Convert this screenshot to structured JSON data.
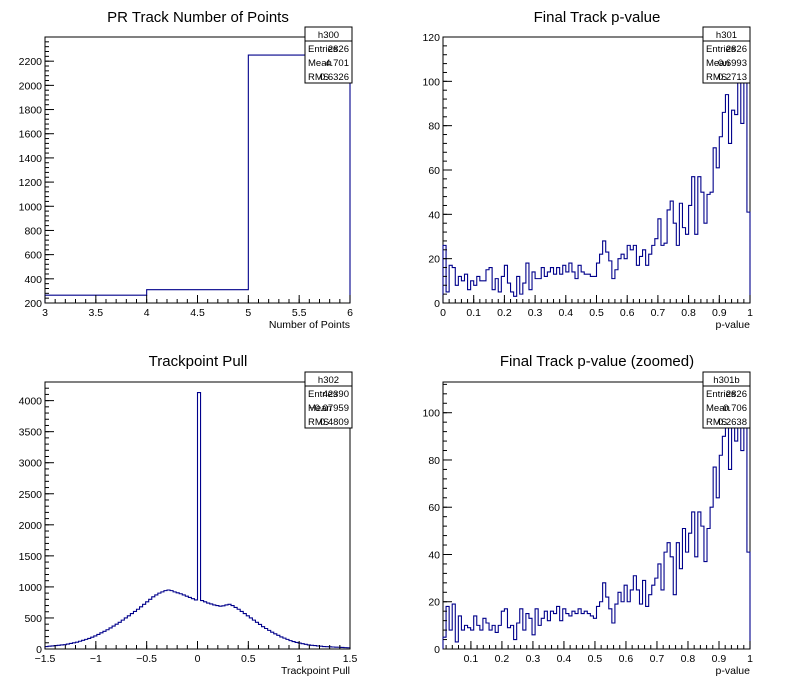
{
  "chart_data": [
    {
      "type": "histogram",
      "title": "PR Track Number of Points",
      "xlabel": "Number of Points",
      "ylabel": "",
      "xlim": [
        3,
        6
      ],
      "ylim": [
        200,
        2400
      ],
      "xticks": [
        "3",
        "3.5",
        "4",
        "4.5",
        "5",
        "5.5",
        "6"
      ],
      "yticks": [
        "200",
        "400",
        "600",
        "800",
        "1000",
        "1200",
        "1400",
        "1600",
        "1800",
        "2000",
        "2200"
      ],
      "bin_edges": [
        3,
        4,
        5,
        6
      ],
      "values": [
        265,
        310,
        2251
      ],
      "stats": {
        "name": "h300",
        "rows": [
          [
            "Entries",
            "2826"
          ],
          [
            "Mean",
            "4.701"
          ],
          [
            "RMS",
            "0.6326"
          ]
        ]
      },
      "line_color": "#00008b"
    },
    {
      "type": "histogram",
      "title": "Final Track p-value",
      "xlabel": "p-value",
      "ylabel": "",
      "xlim": [
        0,
        1
      ],
      "ylim": [
        0,
        120
      ],
      "xticks": [
        "0",
        "0.1",
        "0.2",
        "0.3",
        "0.4",
        "0.5",
        "0.6",
        "0.7",
        "0.8",
        "0.9",
        "1"
      ],
      "yticks": [
        "0",
        "20",
        "40",
        "60",
        "80",
        "100",
        "120"
      ],
      "bin_edges_range": [
        0,
        1
      ],
      "values": [
        26,
        5,
        17,
        16,
        8,
        12,
        10,
        13,
        6,
        10,
        8,
        12,
        10,
        10,
        15,
        16,
        6,
        11,
        5,
        12,
        17,
        9,
        5,
        3,
        12,
        4,
        9,
        18,
        6,
        14,
        11,
        11,
        16,
        12,
        14,
        16,
        13,
        16,
        13,
        17,
        14,
        18,
        14,
        11,
        17,
        14,
        13,
        13,
        12,
        12,
        18,
        22,
        28,
        23,
        19,
        11,
        15,
        20,
        22,
        20,
        26,
        24,
        26,
        17,
        21,
        24,
        17,
        22,
        26,
        29,
        38,
        26,
        27,
        42,
        46,
        36,
        26,
        45,
        34,
        31,
        44,
        57,
        31,
        57,
        50,
        36,
        49,
        50,
        70,
        61,
        75,
        86,
        94,
        72,
        87,
        85,
        102,
        81,
        115,
        41
      ],
      "stats": {
        "name": "h301",
        "rows": [
          [
            "Entries",
            "2826"
          ],
          [
            "Mean",
            "0.6993"
          ],
          [
            "RMS",
            "0.2713"
          ]
        ]
      },
      "line_color": "#00008b"
    },
    {
      "type": "histogram",
      "title": "Trackpoint Pull",
      "xlabel": "Trackpoint Pull",
      "ylabel": "",
      "xlim": [
        -1.5,
        1.5
      ],
      "ylim": [
        0,
        4300
      ],
      "xticks": [
        "−1.5",
        "−1",
        "−0.5",
        "0",
        "0.5",
        "1",
        "1.5"
      ],
      "yticks": [
        "0",
        "500",
        "1000",
        "1500",
        "2000",
        "2500",
        "3000",
        "3500",
        "4000"
      ],
      "bin_edges_range": [
        -1.5,
        1.5
      ],
      "values": [
        40,
        45,
        50,
        55,
        60,
        65,
        70,
        80,
        90,
        100,
        110,
        125,
        140,
        155,
        170,
        190,
        210,
        235,
        260,
        285,
        310,
        340,
        370,
        400,
        430,
        465,
        500,
        535,
        570,
        605,
        640,
        680,
        720,
        760,
        800,
        840,
        870,
        900,
        920,
        940,
        950,
        940,
        920,
        905,
        890,
        870,
        850,
        830,
        810,
        790,
        4130,
        780,
        760,
        740,
        725,
        710,
        700,
        690,
        695,
        710,
        720,
        700,
        670,
        640,
        605,
        570,
        535,
        500,
        465,
        430,
        395,
        360,
        330,
        300,
        270,
        245,
        220,
        195,
        175,
        155,
        135,
        120,
        105,
        95,
        85,
        75,
        65,
        60,
        55,
        50,
        45,
        40,
        38,
        35,
        32,
        30,
        28,
        25,
        22,
        20
      ],
      "stats": {
        "name": "h302",
        "rows": [
          [
            "Entries",
            "42390"
          ],
          [
            "Mean",
            "−0.07959"
          ],
          [
            "RMS",
            "0.4809"
          ]
        ]
      },
      "line_color": "#00008b"
    },
    {
      "type": "histogram",
      "title": "Final Track p-value (zoomed)",
      "xlabel": "p-value",
      "ylabel": "",
      "xlim": [
        0.01,
        1
      ],
      "ylim": [
        0,
        113
      ],
      "xticks": [
        "0.1",
        "0.2",
        "0.3",
        "0.4",
        "0.5",
        "0.6",
        "0.7",
        "0.8",
        "0.9",
        "1"
      ],
      "xtick_values": [
        0.1,
        0.2,
        0.3,
        0.4,
        0.5,
        0.6,
        0.7,
        0.8,
        0.9,
        1.0
      ],
      "yticks": [
        "0",
        "20",
        "40",
        "60",
        "80",
        "100"
      ],
      "bin_edges_range": [
        0.01,
        1
      ],
      "values": [
        5,
        18,
        8,
        19,
        3,
        14,
        8,
        10,
        9,
        8,
        14,
        10,
        8,
        13,
        11,
        8,
        10,
        7,
        10,
        16,
        17,
        9,
        10,
        4,
        11,
        17,
        8,
        15,
        13,
        6,
        17,
        10,
        13,
        16,
        12,
        16,
        15,
        18,
        12,
        17,
        15,
        14,
        16,
        15,
        17,
        15,
        16,
        15,
        14,
        13,
        18,
        20,
        28,
        22,
        17,
        11,
        19,
        24,
        20,
        27,
        20,
        25,
        31,
        25,
        19,
        29,
        18,
        23,
        27,
        30,
        36,
        25,
        41,
        45,
        39,
        23,
        45,
        34,
        51,
        41,
        49,
        58,
        39,
        58,
        52,
        37,
        51,
        60,
        77,
        64,
        82,
        90,
        95,
        76,
        97,
        88,
        103,
        84,
        113,
        41
      ],
      "stats": {
        "name": "h301b",
        "rows": [
          [
            "Entries",
            "2826"
          ],
          [
            "Mean",
            "0.706"
          ],
          [
            "RMS",
            "0.2638"
          ]
        ]
      },
      "line_color": "#00008b"
    }
  ]
}
